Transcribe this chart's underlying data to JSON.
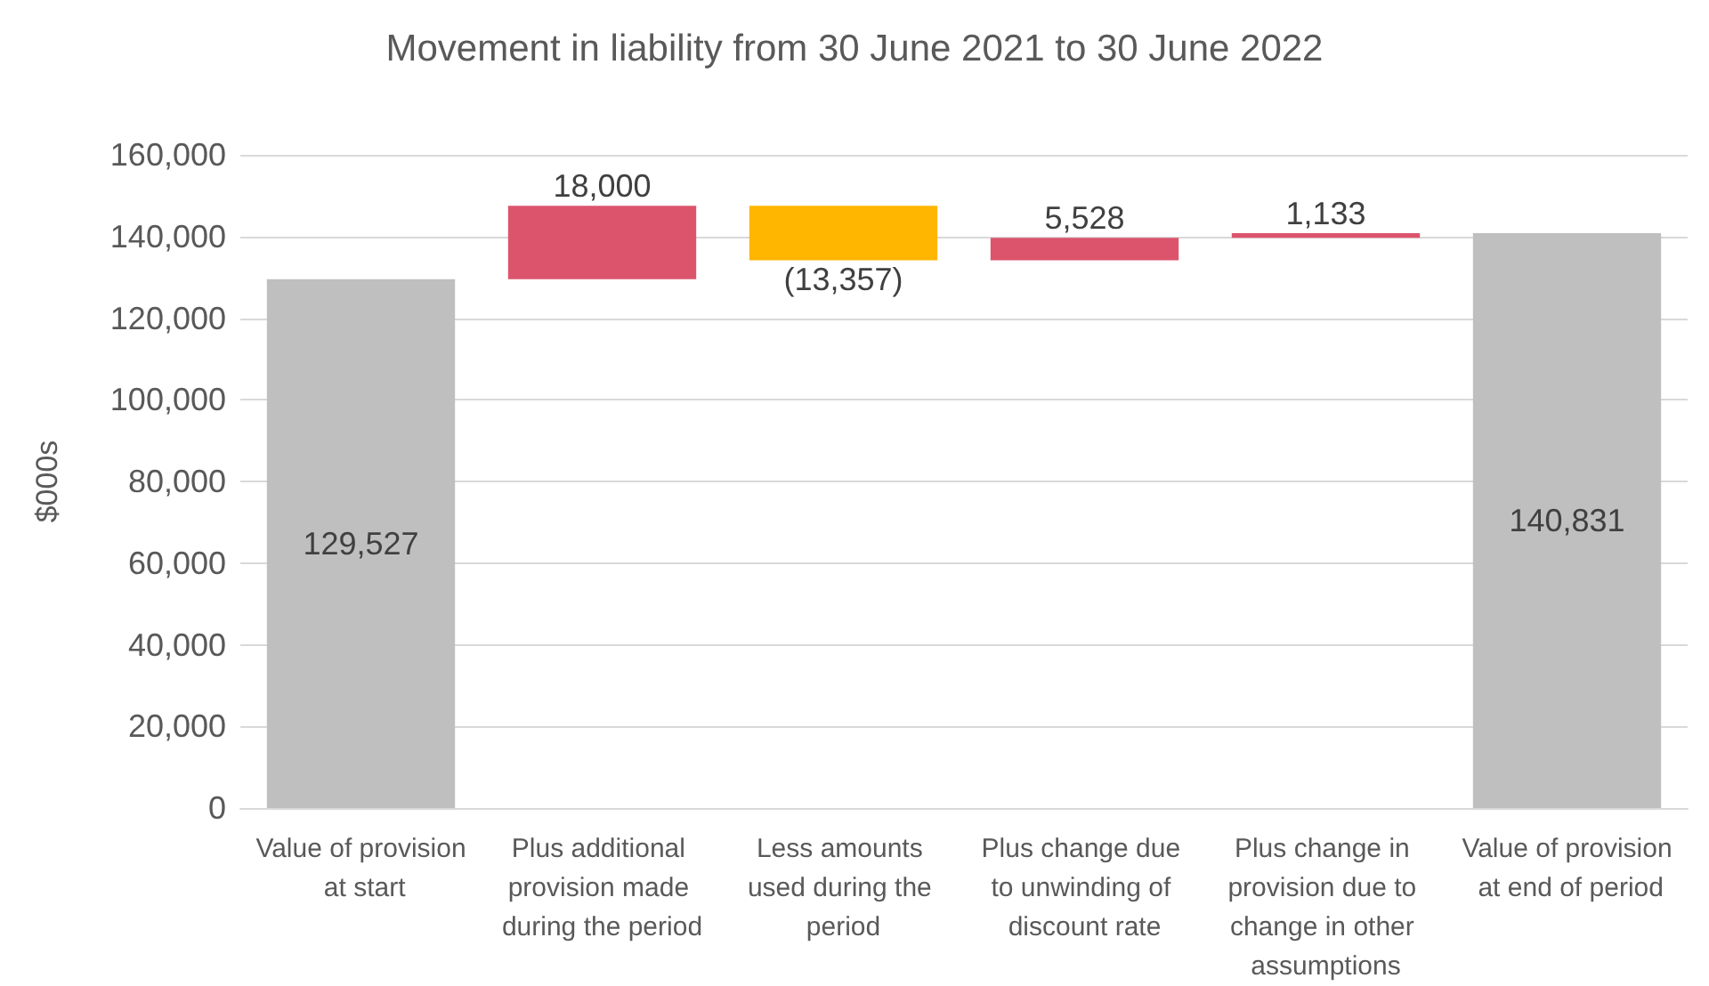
{
  "chart_data": {
    "type": "bar",
    "title": "Movement in liability from 30 June 2021 to 30 June 2022",
    "ylabel": "$000s",
    "categories": [
      "Value of provision at start",
      "Plus additional provision made during the period",
      "Less amounts used during the period",
      "Plus change due to unwinding of discount rate",
      "Plus change in provision due to change in other assumptions",
      "Value of provision at end of period"
    ],
    "values": [
      129527,
      18000,
      -13357,
      5528,
      1133,
      140831
    ],
    "base": [
      0,
      129527,
      147527,
      134170,
      139698,
      0
    ],
    "colors": [
      "#bfbfbf",
      "#dc546c",
      "#ffb600",
      "#dc546c",
      "#dc546c",
      "#bfbfbf"
    ],
    "value_labels": [
      "129,527",
      "18,000",
      "(13,357)",
      "5,528",
      "1,133",
      "140,831"
    ],
    "ylim": [
      0,
      160000
    ],
    "yticks": [
      0,
      {
        "value": 20000,
        "label": "20,000"
      },
      {
        "value": 40000,
        "label": "40,000"
      },
      {
        "value": 60000,
        "label": "60,000"
      },
      {
        "value": 80000,
        "label": "80,000"
      },
      {
        "value": 100000,
        "label": "100,000"
      },
      {
        "value": 120000,
        "label": "120,000"
      },
      {
        "value": 140000,
        "label": "140,000"
      },
      {
        "value": 160000,
        "label": "160,000"
      }
    ],
    "grid": "y"
  }
}
